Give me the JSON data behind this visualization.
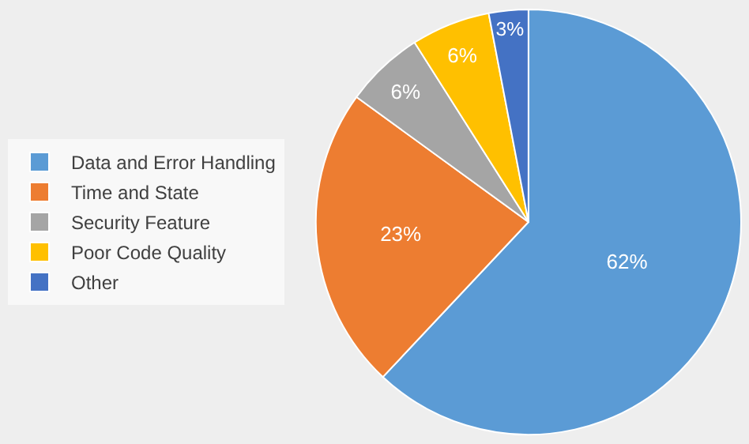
{
  "chart_data": {
    "type": "pie",
    "categories": [
      "Data and Error Handling",
      "Time and State",
      "Security Feature",
      "Poor Code Quality",
      "Other"
    ],
    "values": [
      62,
      23,
      6,
      6,
      3
    ],
    "colors": [
      "#5b9bd5",
      "#ed7d31",
      "#a5a5a5",
      "#ffc000",
      "#4472c4"
    ],
    "value_labels": [
      "62%",
      "23%",
      "6%",
      "6%",
      "3%"
    ],
    "legend": "left"
  }
}
